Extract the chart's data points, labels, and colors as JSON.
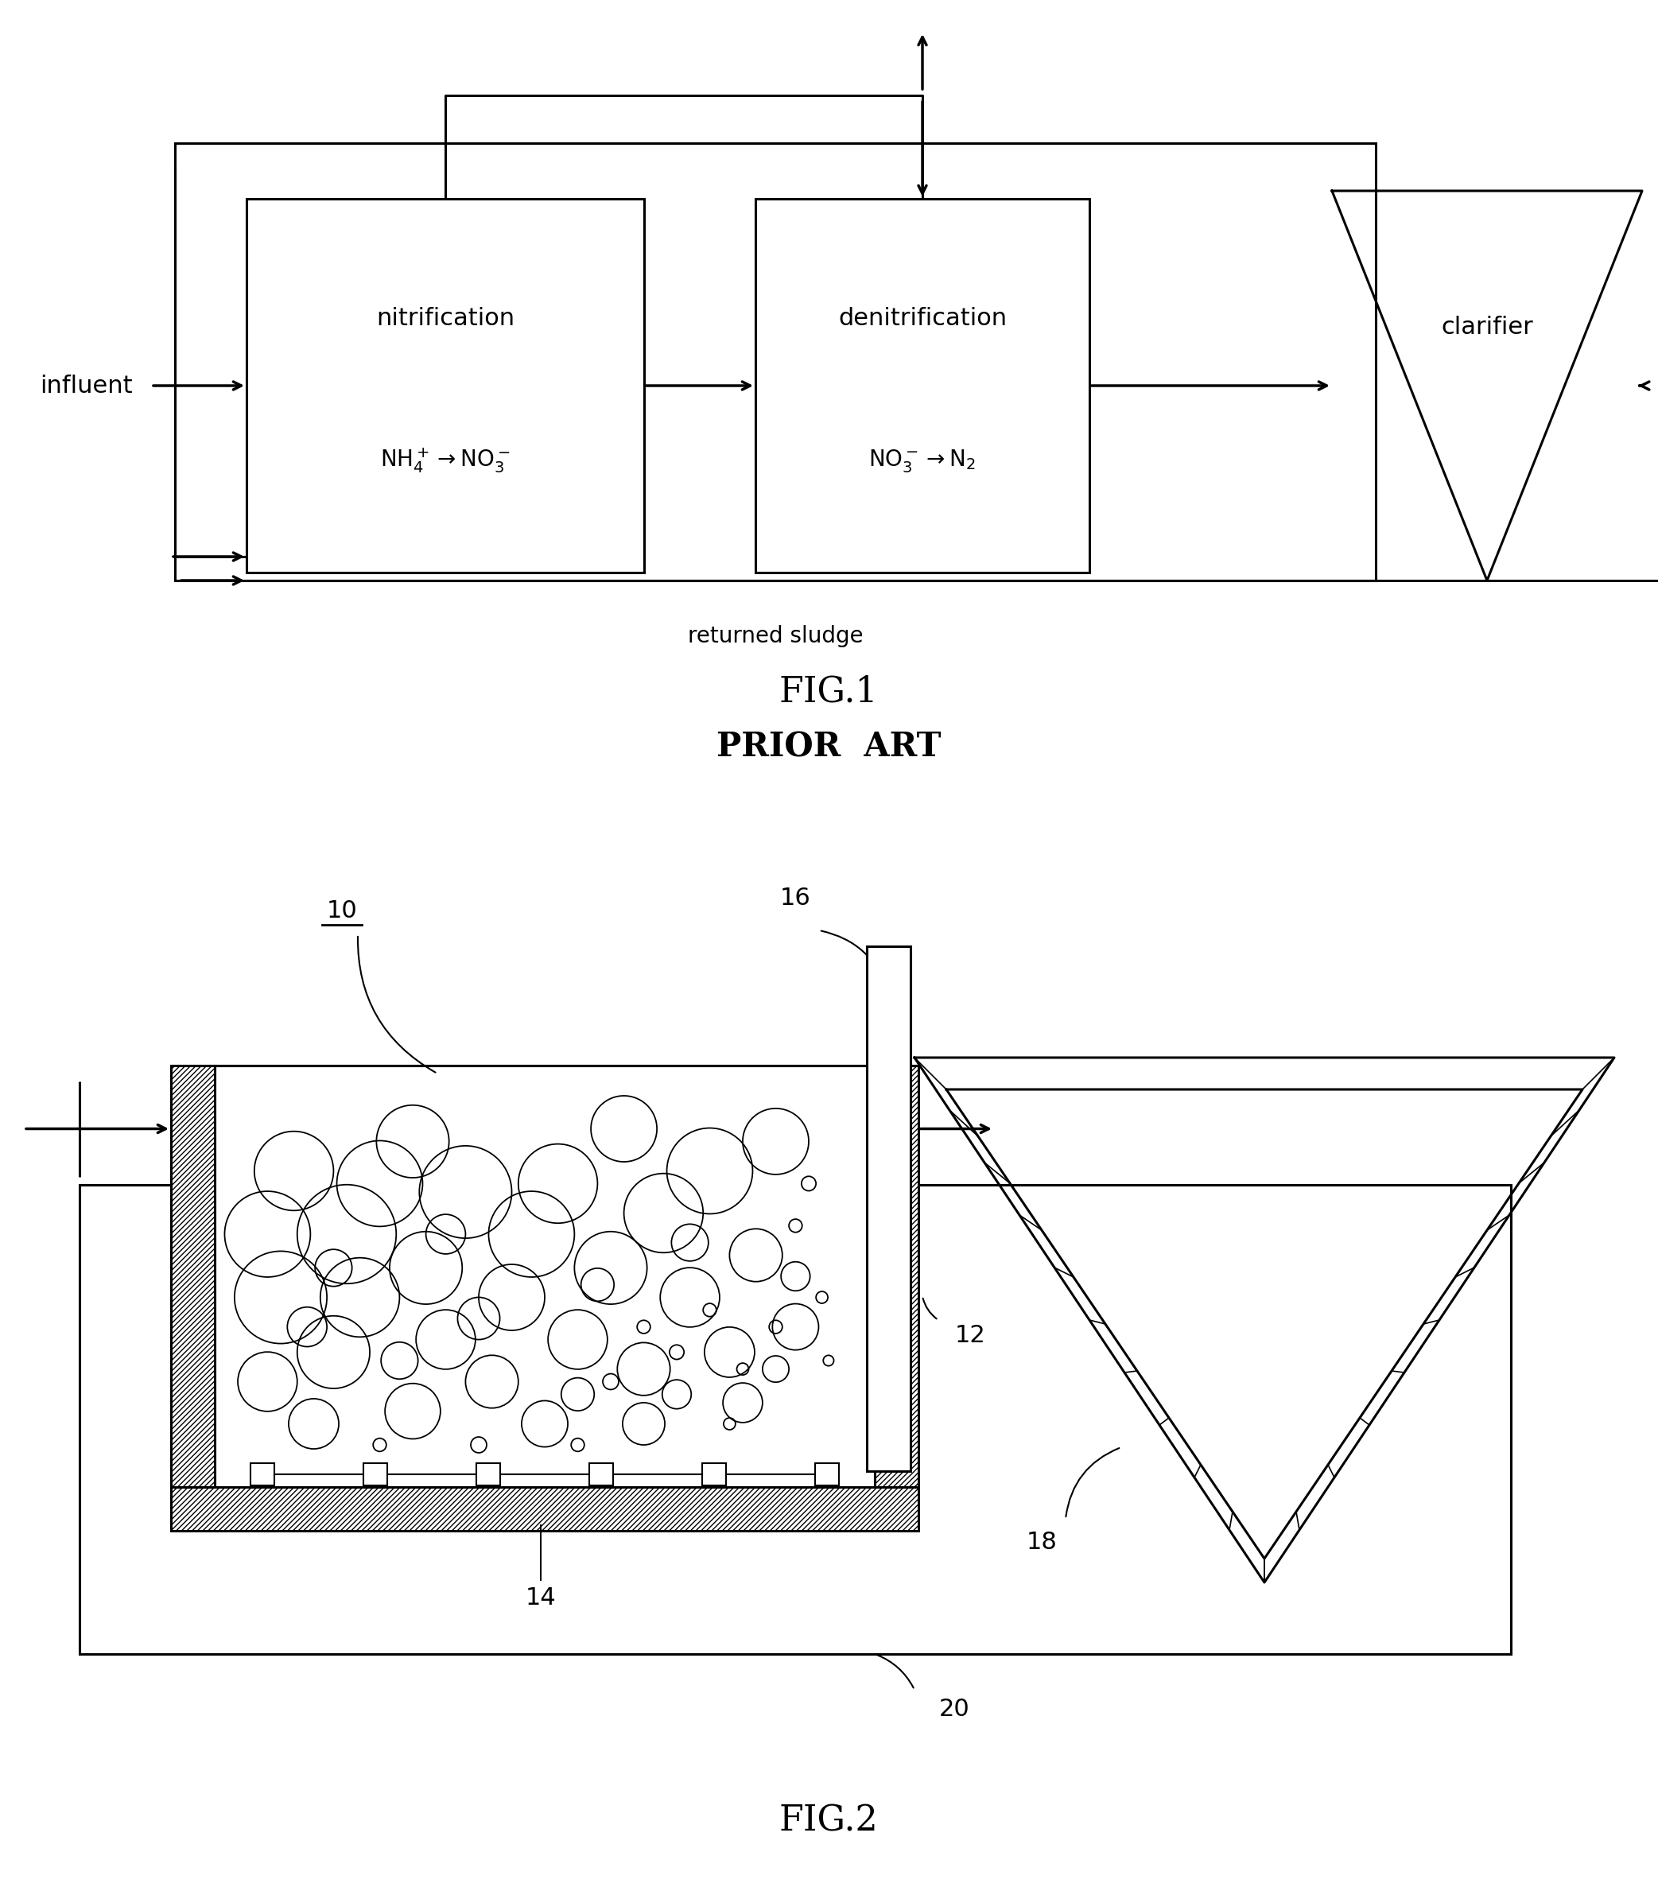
{
  "bg_color": "#ffffff",
  "fig1_title": "FIG.1",
  "fig1_subtitle": "PRIOR  ART",
  "fig2_title": "FIG.2",
  "returned_sludge_label": "returned sludge",
  "label_10": "10",
  "label_12": "12",
  "label_14": "14",
  "label_16": "16",
  "label_18": "18",
  "label_20": "20",
  "nitrification_label": "nitrification",
  "denitrification_label": "denitrification",
  "clarifier_label": "clarifier",
  "influent_label": "influent",
  "nh4_no3_math": "$\\mathrm{NH_4^+}\\rightarrow\\mathrm{NO_3^-}$",
  "no3_n2_math": "$\\mathrm{NO_3^-}\\rightarrow\\mathrm{N_2}$",
  "lw_main": 2.2,
  "lw_arrow": 2.5,
  "fontsize_label": 22,
  "fontsize_eq": 20,
  "fontsize_fig": 32,
  "fontsize_prior": 30
}
